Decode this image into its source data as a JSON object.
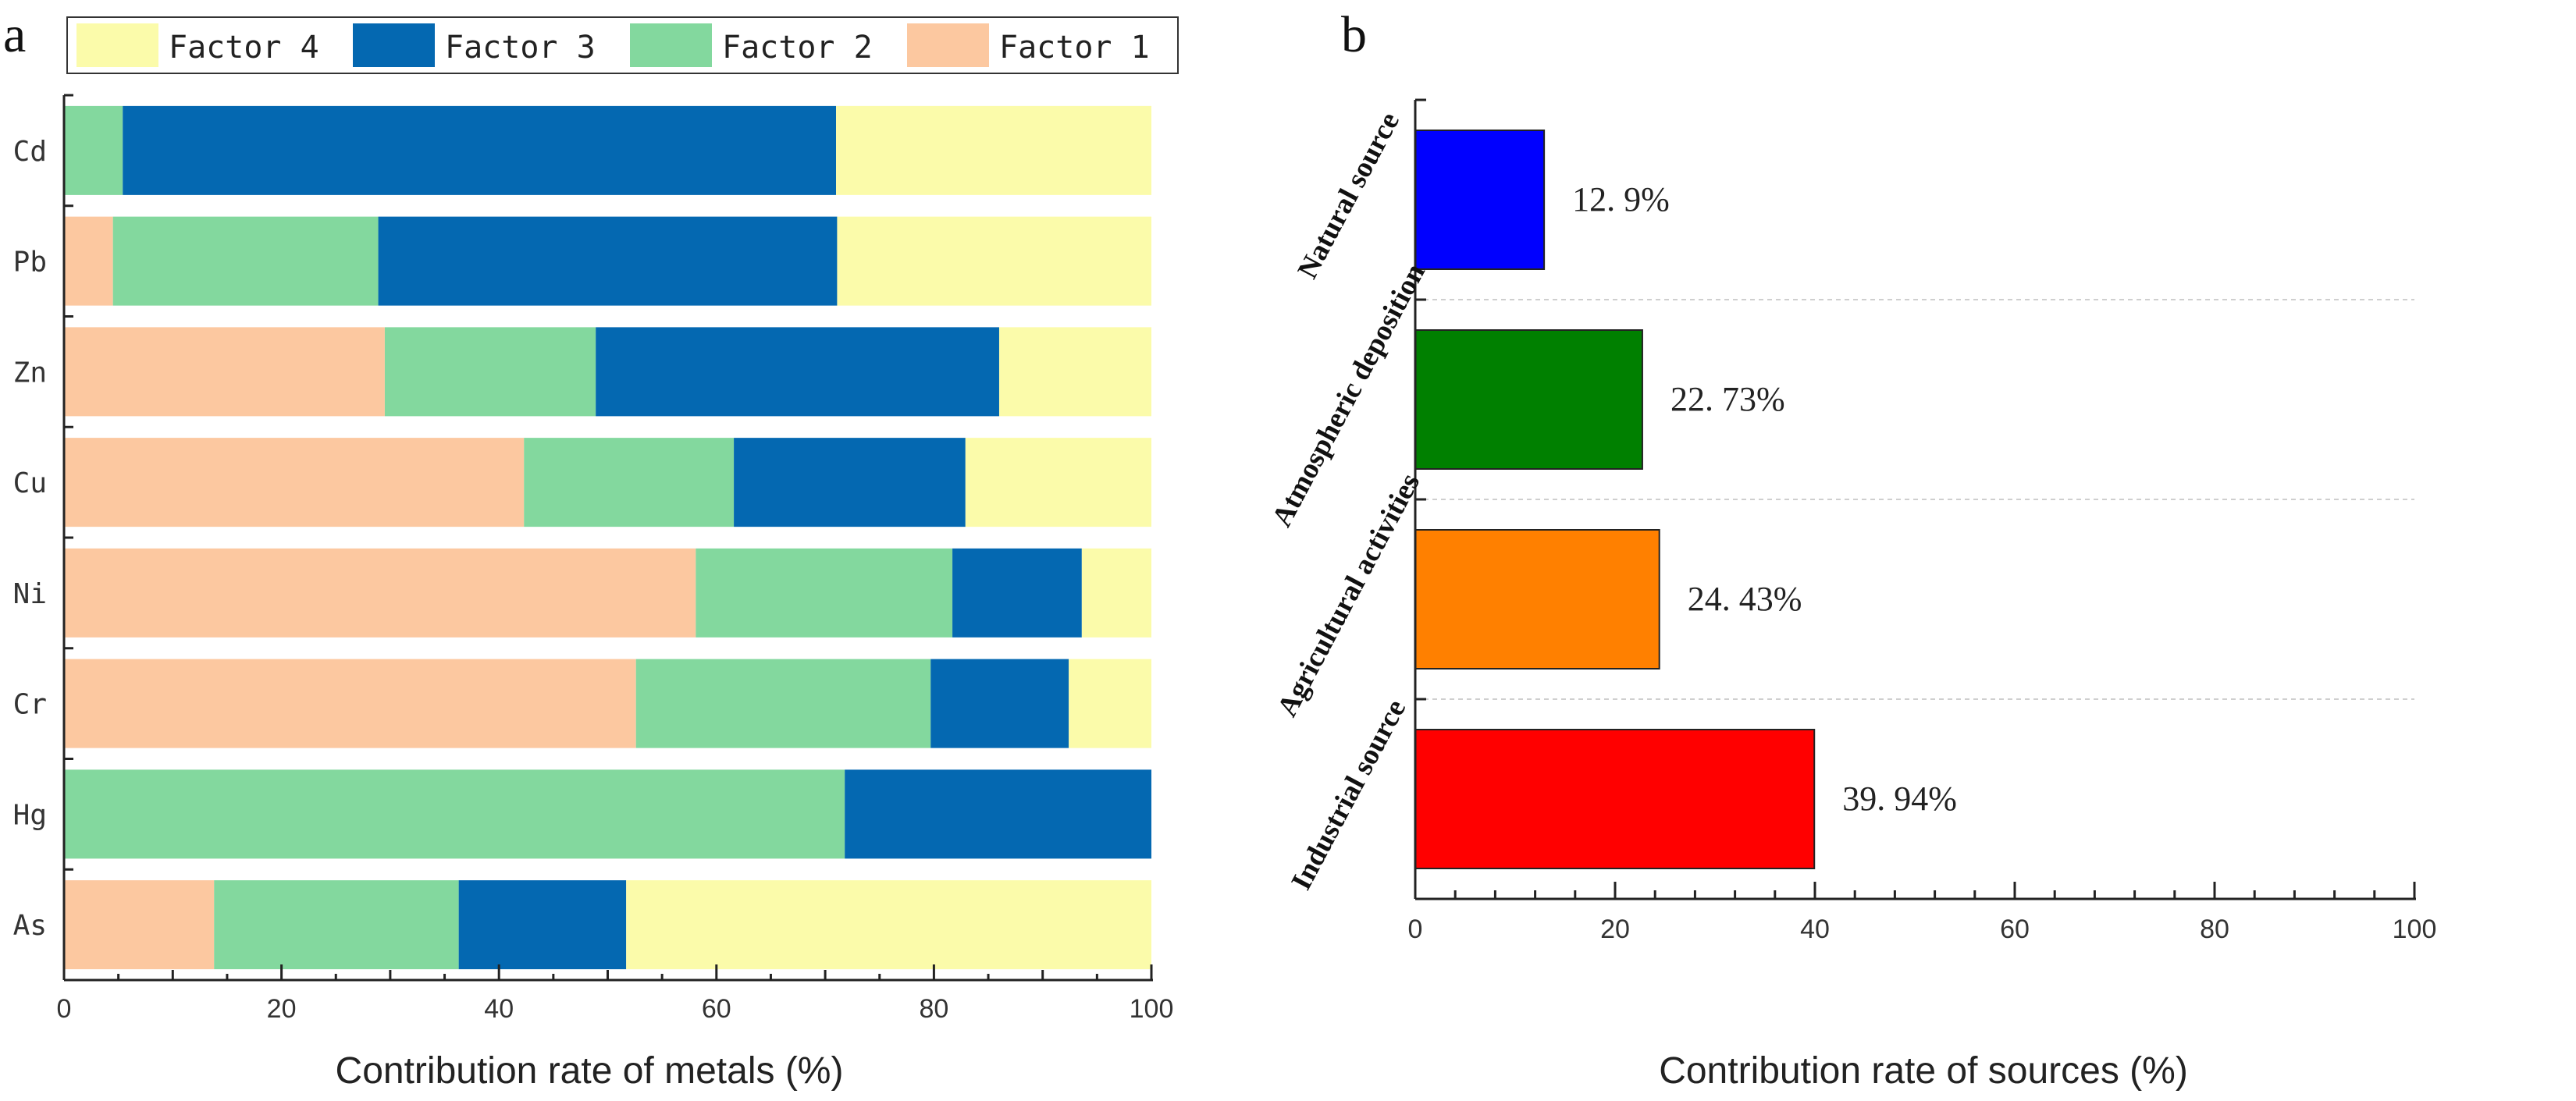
{
  "colors": {
    "factor1": "#fcc8a0",
    "factor2": "#83d89e",
    "factor3": "#0468b1",
    "factor4": "#fbfbaa",
    "axis": "#222222",
    "grid": "#cfcfcf"
  },
  "chart_data": [
    {
      "id": "a",
      "panel_label": "a",
      "type": "bar",
      "orientation": "horizontal",
      "stacked": true,
      "legend": [
        "Factor 4",
        "Factor 3",
        "Factor 2",
        "Factor 1"
      ],
      "legend_placement": "top",
      "categories": [
        "Cd",
        "Pb",
        "Zn",
        "Cu",
        "Ni",
        "Cr",
        "Hg",
        "As"
      ],
      "series": [
        {
          "name": "Factor 1",
          "color": "#fcc8a0",
          "values": [
            0,
            4.5,
            29.5,
            42.3,
            58.1,
            52.6,
            0,
            13.8
          ]
        },
        {
          "name": "Factor 2",
          "color": "#83d89e",
          "values": [
            5.4,
            24.4,
            19.4,
            19.3,
            23.6,
            27.1,
            71.8,
            22.5
          ]
        },
        {
          "name": "Factor 3",
          "color": "#0468b1",
          "values": [
            65.6,
            42.2,
            37.1,
            21.3,
            11.9,
            12.7,
            28.2,
            15.4
          ]
        },
        {
          "name": "Factor 4",
          "color": "#fbfbaa",
          "values": [
            29.0,
            28.9,
            14.0,
            17.1,
            6.4,
            7.6,
            0,
            48.3
          ]
        }
      ],
      "xlabel": "Contribution rate of metals (%)",
      "ylabel": "",
      "xlim": [
        0,
        100
      ],
      "xticks": [
        "0",
        "20",
        "40",
        "60",
        "80",
        "100"
      ]
    },
    {
      "id": "b",
      "panel_label": "b",
      "type": "bar",
      "orientation": "horizontal",
      "categories": [
        "Natural source",
        "Atmospheric deposition",
        "Agricultural activities",
        "Industrial source"
      ],
      "values": [
        12.9,
        22.73,
        24.43,
        39.94
      ],
      "value_labels": [
        "12. 9%",
        "22. 73%",
        "24. 43%",
        "39. 94%"
      ],
      "bar_colors": [
        "#0000ff",
        "#008000",
        "#ff8000",
        "#ff0000"
      ],
      "xlabel": "Contribution rate of sources (%)",
      "ylabel": "",
      "xlim": [
        0,
        100
      ],
      "xticks": [
        "0",
        "20",
        "40",
        "60",
        "80",
        "100"
      ],
      "grid": "horizontal-dashed"
    }
  ]
}
